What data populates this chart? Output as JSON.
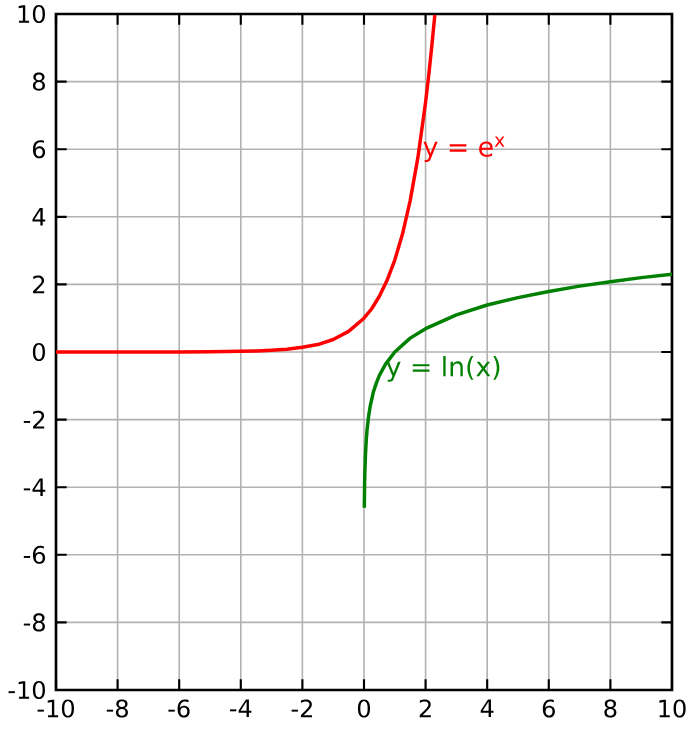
{
  "chart_data": {
    "type": "line",
    "xlim": [
      -10,
      10
    ],
    "ylim": [
      -10,
      10
    ],
    "xticks": [
      -10,
      -8,
      -6,
      -4,
      -2,
      0,
      2,
      4,
      6,
      8,
      10
    ],
    "yticks": [
      -10,
      -8,
      -6,
      -4,
      -2,
      0,
      2,
      4,
      6,
      8,
      10
    ],
    "grid": true,
    "marker": "none",
    "line_style": "solid",
    "annotations": [
      {
        "text": "y = e$^{x}$",
        "x": 1.8,
        "y": 6
      },
      {
        "text": "y = ln(x)",
        "x": 0.6,
        "y": -0.5
      }
    ],
    "series": [
      {
        "color": "#ff0000",
        "x": [
          -10,
          -8,
          -6,
          -5,
          -4,
          -3.5,
          -3,
          -2.5,
          -2,
          -1.5,
          -1,
          -0.5,
          0,
          0.25,
          0.5,
          0.75,
          1,
          1.25,
          1.5,
          1.75,
          2,
          2.1,
          2.2,
          2.3
        ],
        "values": [
          0,
          0,
          0,
          0.01,
          0.02,
          0.03,
          0.05,
          0.08,
          0.14,
          0.22,
          0.37,
          0.61,
          1,
          1.28,
          1.65,
          2.12,
          2.72,
          3.49,
          4.48,
          5.75,
          7.39,
          8.17,
          9.03,
          9.97
        ]
      },
      {
        "color": "#008000",
        "x": [
          0.01,
          0.02,
          0.03,
          0.05,
          0.075,
          0.1,
          0.15,
          0.2,
          0.3,
          0.4,
          0.5,
          0.7,
          1,
          1.5,
          2,
          3,
          4,
          5,
          6,
          7,
          8,
          9,
          10
        ],
        "values": [
          -4.61,
          -3.91,
          -3.51,
          -3.0,
          -2.59,
          -2.3,
          -1.9,
          -1.61,
          -1.2,
          -0.92,
          -0.69,
          -0.36,
          0,
          0.41,
          0.69,
          1.1,
          1.39,
          1.61,
          1.79,
          1.95,
          2.08,
          2.2,
          2.3
        ]
      }
    ]
  }
}
